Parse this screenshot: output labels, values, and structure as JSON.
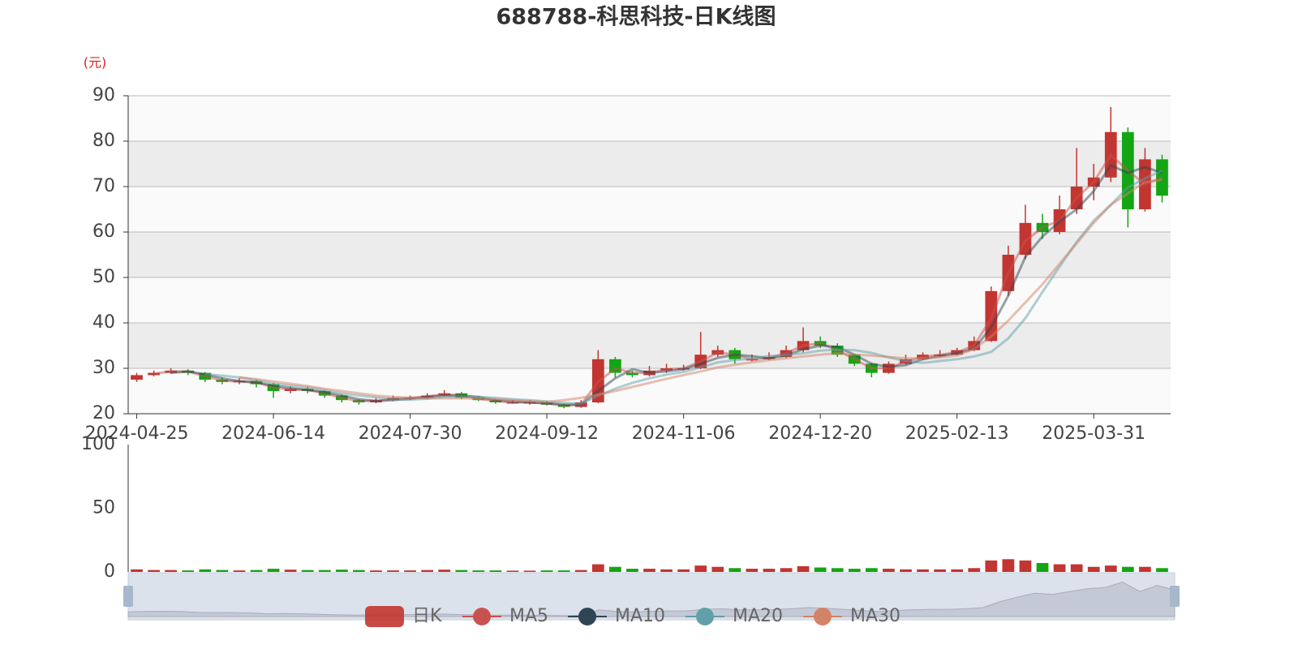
{
  "chart_data": {
    "type": "candlestick",
    "title": "688788-科思科技-日K线图",
    "y_unit": "(元)",
    "categories": [
      "2024-04-25",
      null,
      null,
      null,
      null,
      null,
      null,
      null,
      "2024-06-14",
      null,
      null,
      null,
      null,
      null,
      null,
      null,
      "2024-07-30",
      null,
      null,
      null,
      null,
      null,
      null,
      null,
      "2024-09-12",
      null,
      null,
      null,
      null,
      null,
      null,
      null,
      "2024-11-06",
      null,
      null,
      null,
      null,
      null,
      null,
      null,
      "2024-12-20",
      null,
      null,
      null,
      null,
      null,
      null,
      null,
      "2025-02-13",
      null,
      null,
      null,
      null,
      null,
      null,
      null,
      "2025-03-31",
      null,
      null,
      null,
      null
    ],
    "candles": {
      "name": "日K",
      "up_color": "#c23531",
      "down_color": "#14a514",
      "values": [
        [
          27.5,
          28.5,
          27,
          29
        ],
        [
          28.5,
          29,
          28.2,
          29.5
        ],
        [
          29,
          29.5,
          28.8,
          30
        ],
        [
          29.5,
          29,
          28.5,
          29.8
        ],
        [
          29,
          27.5,
          27,
          29.2
        ],
        [
          27.5,
          27,
          26.5,
          28
        ],
        [
          27,
          27.2,
          26.5,
          27.8
        ],
        [
          27.2,
          26.5,
          25.8,
          27.5
        ],
        [
          26.5,
          25,
          23.5,
          26.8
        ],
        [
          25,
          25.5,
          24.5,
          26
        ],
        [
          25.5,
          25,
          24.5,
          26
        ],
        [
          25,
          24,
          23.5,
          25.2
        ],
        [
          24,
          23,
          22.5,
          24.2
        ],
        [
          23,
          22.5,
          22,
          23.2
        ],
        [
          22.5,
          23,
          22.3,
          23.5
        ],
        [
          23,
          23.5,
          22.8,
          24
        ],
        [
          23.5,
          23.5,
          23,
          24
        ],
        [
          23.5,
          24,
          23.2,
          24.5
        ],
        [
          24,
          24.5,
          23.8,
          25.2
        ],
        [
          24.5,
          23.5,
          23.2,
          24.8
        ],
        [
          23.5,
          23,
          22.8,
          23.8
        ],
        [
          23,
          22.5,
          22.2,
          23.2
        ],
        [
          22.5,
          22.5,
          22.2,
          23
        ],
        [
          22.5,
          22.5,
          22,
          23
        ],
        [
          22.5,
          22,
          21.8,
          22.8
        ],
        [
          22,
          21.5,
          21.2,
          22.2
        ],
        [
          21.5,
          22.5,
          21.3,
          23
        ],
        [
          22.5,
          32,
          22.3,
          34
        ],
        [
          32,
          29,
          28,
          32.5
        ],
        [
          29,
          28.5,
          28,
          29.5
        ],
        [
          28.5,
          29.5,
          28.2,
          30.5
        ],
        [
          29.5,
          30,
          29,
          31
        ],
        [
          30,
          30,
          29.5,
          30.8
        ],
        [
          30,
          33,
          29.8,
          38
        ],
        [
          33,
          34,
          32.5,
          35
        ],
        [
          34,
          32,
          31,
          34.5
        ],
        [
          32,
          32,
          31.5,
          33
        ],
        [
          32,
          32.5,
          31.8,
          33.5
        ],
        [
          32.5,
          34,
          32.2,
          35
        ],
        [
          34,
          36,
          33.5,
          39
        ],
        [
          36,
          35,
          34.5,
          37
        ],
        [
          35,
          33,
          32.5,
          35.5
        ],
        [
          33,
          31,
          30.5,
          33.2
        ],
        [
          31,
          29,
          28,
          31.2
        ],
        [
          29,
          31,
          28.8,
          31.5
        ],
        [
          31,
          32,
          30.8,
          33
        ],
        [
          32,
          33,
          31.8,
          33.5
        ],
        [
          33,
          33,
          32.5,
          34
        ],
        [
          33,
          34,
          32.8,
          34.5
        ],
        [
          34,
          36,
          33.8,
          37
        ],
        [
          36,
          47,
          35.8,
          48
        ],
        [
          47,
          55,
          46,
          57
        ],
        [
          55,
          62,
          54,
          66
        ],
        [
          62,
          60,
          58.5,
          64
        ],
        [
          60,
          65,
          59.5,
          68
        ],
        [
          65,
          70,
          64,
          78.5
        ],
        [
          70,
          72,
          67,
          75
        ],
        [
          72,
          82,
          71,
          87.5
        ],
        [
          82,
          65,
          61,
          83
        ],
        [
          65,
          76,
          64.5,
          78.5
        ],
        [
          76,
          68,
          66.5,
          77
        ]
      ]
    },
    "series": [
      {
        "name": "MA5",
        "color": "#c9524f",
        "values": [
          null,
          28.8,
          29.3,
          29.3,
          28.3,
          27.3,
          27.1,
          26.9,
          25.8,
          25.3,
          25.3,
          24.5,
          23.5,
          22.8,
          22.8,
          23.3,
          23.5,
          23.8,
          24.3,
          24,
          23.3,
          22.8,
          22.5,
          22.5,
          22.3,
          21.8,
          22,
          27,
          30,
          29,
          29,
          29.8,
          30,
          31.5,
          33.5,
          33,
          32,
          32.3,
          33.3,
          35,
          35.5,
          34,
          32,
          30,
          30,
          31.5,
          32.5,
          33,
          33.5,
          35,
          41,
          51,
          58,
          61,
          62.5,
          67.5,
          71,
          77,
          73.5,
          70.5,
          72
        ]
      },
      {
        "name": "MA10",
        "color": "#2f4554",
        "values": [
          null,
          null,
          29,
          29.3,
          28.7,
          27.8,
          27.2,
          26.9,
          26.2,
          25.7,
          25.2,
          24.8,
          24,
          23.2,
          22.8,
          23,
          23.3,
          23.7,
          24,
          24,
          23.7,
          23,
          22.7,
          22.5,
          22.3,
          22,
          22,
          25,
          27.8,
          29.8,
          29,
          29.3,
          29.8,
          31,
          32.3,
          33,
          32.7,
          32.2,
          32.8,
          34.2,
          35,
          34.7,
          33,
          31,
          30.3,
          30.7,
          32,
          32.7,
          33.3,
          34.3,
          39,
          46,
          54.5,
          59,
          62.3,
          65,
          69,
          74.7,
          73,
          74.3,
          73
        ]
      },
      {
        "name": "MA20",
        "color": "#61a0a8",
        "values": [
          null,
          null,
          null,
          null,
          28.7,
          28.4,
          28,
          27.4,
          26.6,
          26.2,
          25.8,
          25.2,
          24.5,
          24,
          23.6,
          23.2,
          23.1,
          23.3,
          23.7,
          23.8,
          23.7,
          23.5,
          23.2,
          23,
          22.7,
          22.4,
          22.2,
          24,
          25.5,
          26.8,
          27.8,
          28.6,
          29.2,
          30.2,
          31.3,
          31.8,
          32.2,
          32.7,
          32.9,
          33.3,
          33.9,
          34.1,
          34,
          33.4,
          32.4,
          31.6,
          31.2,
          31.6,
          32,
          32.6,
          33.6,
          36.6,
          41,
          46.8,
          52.4,
          57.8,
          62.5,
          66,
          69.8,
          71.8,
          73.5
        ]
      },
      {
        "name": "MA30",
        "color": "#d48265",
        "values": [
          null,
          null,
          null,
          null,
          null,
          null,
          28,
          27.6,
          27.1,
          26.6,
          26.1,
          25.5,
          25,
          24.5,
          24,
          23.7,
          23.5,
          23.4,
          23.4,
          23.4,
          23.3,
          23.2,
          23,
          22.8,
          22.6,
          23,
          23.5,
          24.2,
          25,
          25.9,
          26.8,
          27.7,
          28.5,
          29.3,
          30.2,
          30.8,
          31.3,
          31.8,
          32.2,
          32.6,
          33,
          33.3,
          33,
          32.8,
          32.5,
          32.2,
          32.2,
          32.4,
          32.8,
          34.3,
          37,
          40.5,
          44.5,
          48.5,
          53,
          57.5,
          62,
          66,
          68.5,
          71,
          71.5
        ]
      }
    ],
    "ylim": [
      20,
      90
    ],
    "yticks": [
      20,
      30,
      40,
      50,
      60,
      70,
      80,
      90
    ],
    "grid": true,
    "volume": {
      "values": [
        2,
        1.5,
        1.5,
        1.2,
        2,
        1.5,
        1.2,
        1.5,
        2.5,
        1.8,
        1.5,
        1.5,
        1.8,
        1.5,
        1.2,
        1.2,
        1.2,
        1.5,
        1.8,
        1.5,
        1.2,
        1.2,
        1,
        1,
        1.2,
        1.2,
        1.5,
        6,
        4,
        2.5,
        2.5,
        2,
        2,
        5,
        4,
        3,
        2.5,
        2.5,
        3,
        4.5,
        3.5,
        3,
        2.5,
        3,
        2.5,
        2,
        2,
        2,
        2,
        3,
        9,
        10,
        9,
        7,
        6,
        6,
        4,
        5,
        4,
        4,
        3
      ],
      "ylim": [
        0,
        100
      ],
      "yticks": [
        0,
        50,
        100
      ]
    }
  }
}
